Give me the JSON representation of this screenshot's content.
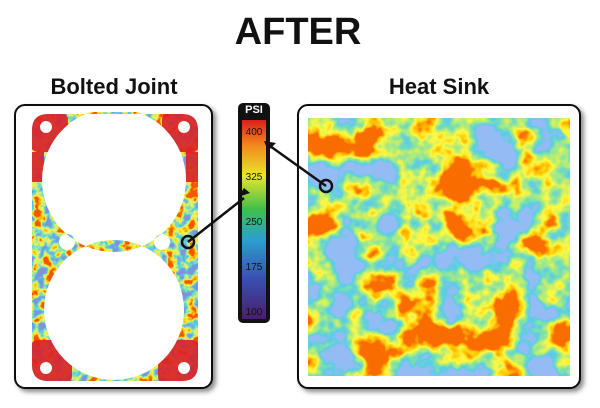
{
  "title": "AFTER",
  "panels": [
    {
      "label": "Bolted Joint"
    },
    {
      "label": "Heat Sink"
    }
  ],
  "scale": {
    "unit": "PSI",
    "ticks": [
      400,
      325,
      250,
      175,
      100
    ]
  }
}
